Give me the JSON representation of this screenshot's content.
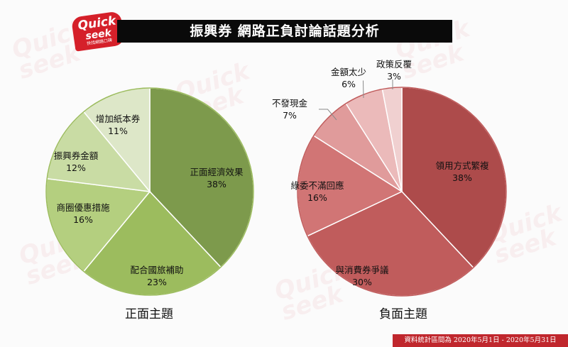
{
  "header": {
    "title": "振興券 網路正負討論話題分析",
    "logo_line1": "Quick",
    "logo_line2": "seek",
    "logo_sub": "快找網路口碑"
  },
  "chart_data": [
    {
      "type": "pie",
      "caption": "正面主題",
      "slices": [
        {
          "label": "正面經濟效果",
          "value": 38,
          "display": "38%",
          "color": "#7d9a4c"
        },
        {
          "label": "配合國旅補助",
          "value": 23,
          "display": "23%",
          "color": "#9cbc5e"
        },
        {
          "label": "商圈優惠措施",
          "value": 16,
          "display": "16%",
          "color": "#b4cf7f"
        },
        {
          "label": "振興券金額",
          "value": 12,
          "display": "12%",
          "color": "#c9dca4"
        },
        {
          "label": "增加紙本券",
          "value": 11,
          "display": "11%",
          "color": "#dde7c8"
        }
      ]
    },
    {
      "type": "pie",
      "caption": "負面主題",
      "slices": [
        {
          "label": "領用方式繁複",
          "value": 38,
          "display": "38%",
          "color": "#ad4b4b"
        },
        {
          "label": "與消費券爭議",
          "value": 30,
          "display": "30%",
          "color": "#c05c5c"
        },
        {
          "label": "綠委不滿回應",
          "value": 16,
          "display": "16%",
          "color": "#d17575"
        },
        {
          "label": "不發現金",
          "value": 7,
          "display": "7%",
          "color": "#e09b9b"
        },
        {
          "label": "金額太少",
          "value": 6,
          "display": "6%",
          "color": "#ebbaba"
        },
        {
          "label": "政策反覆",
          "value": 3,
          "display": "3%",
          "color": "#f0d0d0"
        }
      ]
    }
  ],
  "footer": {
    "note": "資料統計區間為 2020年5月1日 - 2020年5月31日"
  },
  "colors": {
    "title_bar": "#0a0a0a",
    "footer_bg": "#c0272d",
    "positive_outline": "#7d9a4c",
    "negative_outline": "#ad4b4b"
  }
}
